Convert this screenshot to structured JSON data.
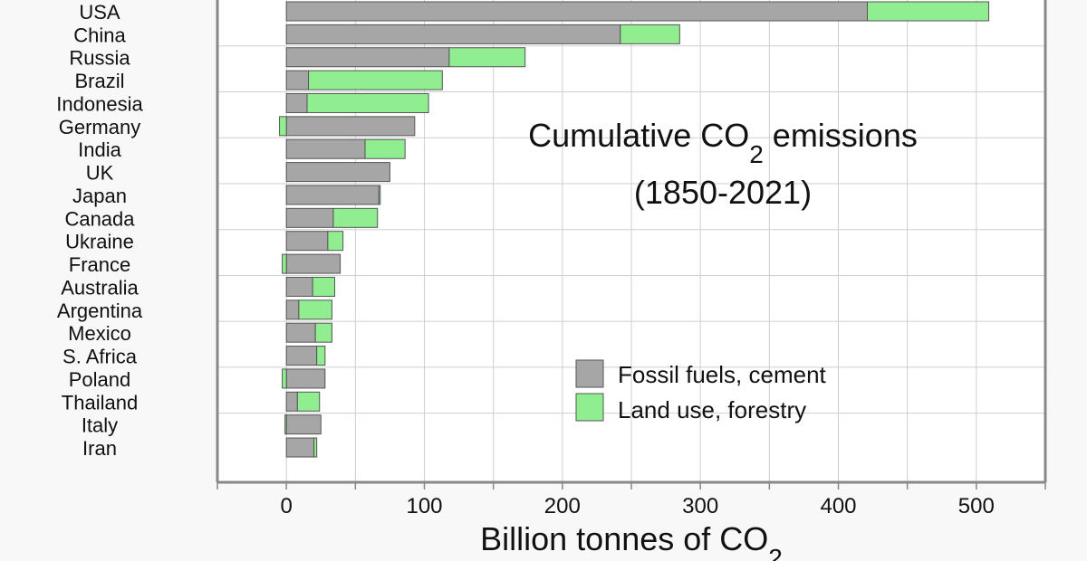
{
  "chart_data": {
    "type": "bar",
    "orientation": "horizontal",
    "stacked": true,
    "title_main": "Cumulative CO",
    "title_sub": "2",
    "title_tail": " emissions",
    "title_line2": "(1850-2021)",
    "xlabel_main": "Billion tonnes of CO",
    "xlabel_sub": "2",
    "xlim": [
      -50,
      550
    ],
    "xticks": [
      0,
      100,
      200,
      300,
      400,
      500
    ],
    "grid": true,
    "legend_position": "lower-right",
    "categories": [
      "USA",
      "China",
      "Russia",
      "Brazil",
      "Indonesia",
      "Germany",
      "India",
      "UK",
      "Japan",
      "Canada",
      "Ukraine",
      "France",
      "Australia",
      "Argentina",
      "Mexico",
      "S. Africa",
      "Poland",
      "Thailand",
      "Italy",
      "Iran"
    ],
    "series": [
      {
        "name": "Fossil fuels, cement",
        "color": "#a6a6a6",
        "values": [
          421,
          242,
          118,
          16,
          15,
          93,
          57,
          75,
          67,
          34,
          30,
          39,
          19,
          9,
          21,
          22,
          28,
          8,
          25,
          20
        ]
      },
      {
        "name": "Land use, forestry",
        "color": "#90ee90",
        "values": [
          88,
          43,
          55,
          97,
          88,
          -5,
          29,
          0,
          1,
          32,
          11,
          -3,
          16,
          24,
          12,
          6,
          -3,
          16,
          -1,
          2
        ]
      }
    ]
  }
}
